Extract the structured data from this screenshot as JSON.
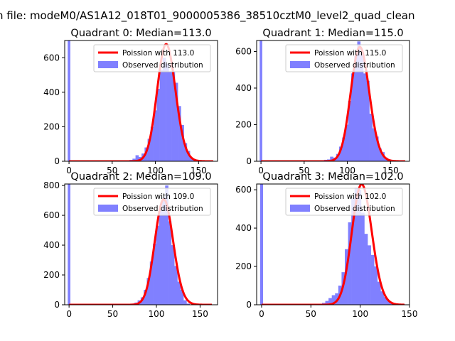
{
  "figure": {
    "suptitle": "n file: modeM0/AS1A12_018T01_9000005386_38510cztM0_level2_quad_clean"
  },
  "chart_data": [
    {
      "type": "bar",
      "title": "Quadrant 0: Median=113.0",
      "xlim": [
        -5,
        172
      ],
      "ylim": [
        0,
        700
      ],
      "xticks": [
        0,
        50,
        100,
        150
      ],
      "yticks": [
        0,
        200,
        400,
        600
      ],
      "median": 113.0,
      "curve_color": "#ff0000",
      "bar_color": "#8080ff",
      "legend": {
        "placement": "top-right",
        "entries": [
          "Poission with 113.0",
          "Observed distribution"
        ]
      },
      "zero_bar": {
        "x0": -1.5,
        "x1": 1.5,
        "value": 700
      },
      "bins": {
        "start": 70,
        "width": 3.5
      },
      "values": [
        8,
        15,
        35,
        25,
        45,
        80,
        130,
        200,
        295,
        420,
        530,
        600,
        565,
        520,
        520,
        455,
        320,
        210,
        105,
        60,
        20,
        10
      ]
    },
    {
      "type": "bar",
      "title": "Quadrant 1: Median=115.0",
      "xlim": [
        -5,
        172
      ],
      "ylim": [
        0,
        660
      ],
      "xticks": [
        0,
        50,
        100,
        150
      ],
      "yticks": [
        0,
        200,
        400,
        600
      ],
      "median": 115.0,
      "curve_color": "#ff0000",
      "bar_color": "#8080ff",
      "legend": {
        "placement": "top-right",
        "entries": [
          "Poission with 115.0",
          "Observed distribution"
        ]
      },
      "zero_bar": {
        "x0": -1.5,
        "x1": 1.5,
        "value": 660
      },
      "bins": {
        "start": 73,
        "width": 3.5
      },
      "values": [
        8,
        10,
        25,
        20,
        40,
        80,
        130,
        200,
        330,
        480,
        575,
        655,
        600,
        480,
        440,
        260,
        180,
        135,
        70,
        50,
        20,
        10
      ]
    },
    {
      "type": "bar",
      "title": "Quadrant 2: Median=109.0",
      "xlim": [
        -5,
        170
      ],
      "ylim": [
        0,
        810
      ],
      "xticks": [
        0,
        50,
        100,
        150
      ],
      "yticks": [
        0,
        200,
        400,
        600,
        800
      ],
      "median": 109.0,
      "curve_color": "#ff0000",
      "bar_color": "#8080ff",
      "legend": {
        "placement": "top-right",
        "entries": [
          "Poission with 109.0",
          "Observed distribution"
        ]
      },
      "zero_bar": {
        "x0": -1.5,
        "x1": 1.5,
        "value": 810
      },
      "bins": {
        "start": 68,
        "width": 3.5
      },
      "values": [
        5,
        8,
        15,
        30,
        50,
        100,
        180,
        290,
        410,
        530,
        640,
        720,
        800,
        560,
        400,
        260,
        155,
        100,
        30,
        8
      ]
    },
    {
      "type": "bar",
      "title": "Quadrant 3: Median=102.0",
      "xlim": [
        -5,
        150
      ],
      "ylim": [
        0,
        630
      ],
      "xticks": [
        0,
        50,
        100,
        150
      ],
      "yticks": [
        0,
        200,
        400,
        600
      ],
      "median": 102.0,
      "curve_color": "#ff0000",
      "bar_color": "#8080ff",
      "legend": {
        "placement": "top-right",
        "entries": [
          "Poission with 102.0",
          "Observed distribution"
        ]
      },
      "zero_bar": {
        "x0": -1.5,
        "x1": 1.5,
        "value": 630
      },
      "bins": {
        "start": 58,
        "width": 3.3
      },
      "values": [
        5,
        10,
        20,
        35,
        50,
        60,
        100,
        170,
        290,
        430,
        560,
        610,
        600,
        480,
        370,
        310,
        260,
        200,
        120,
        70,
        40,
        20,
        10
      ]
    }
  ]
}
